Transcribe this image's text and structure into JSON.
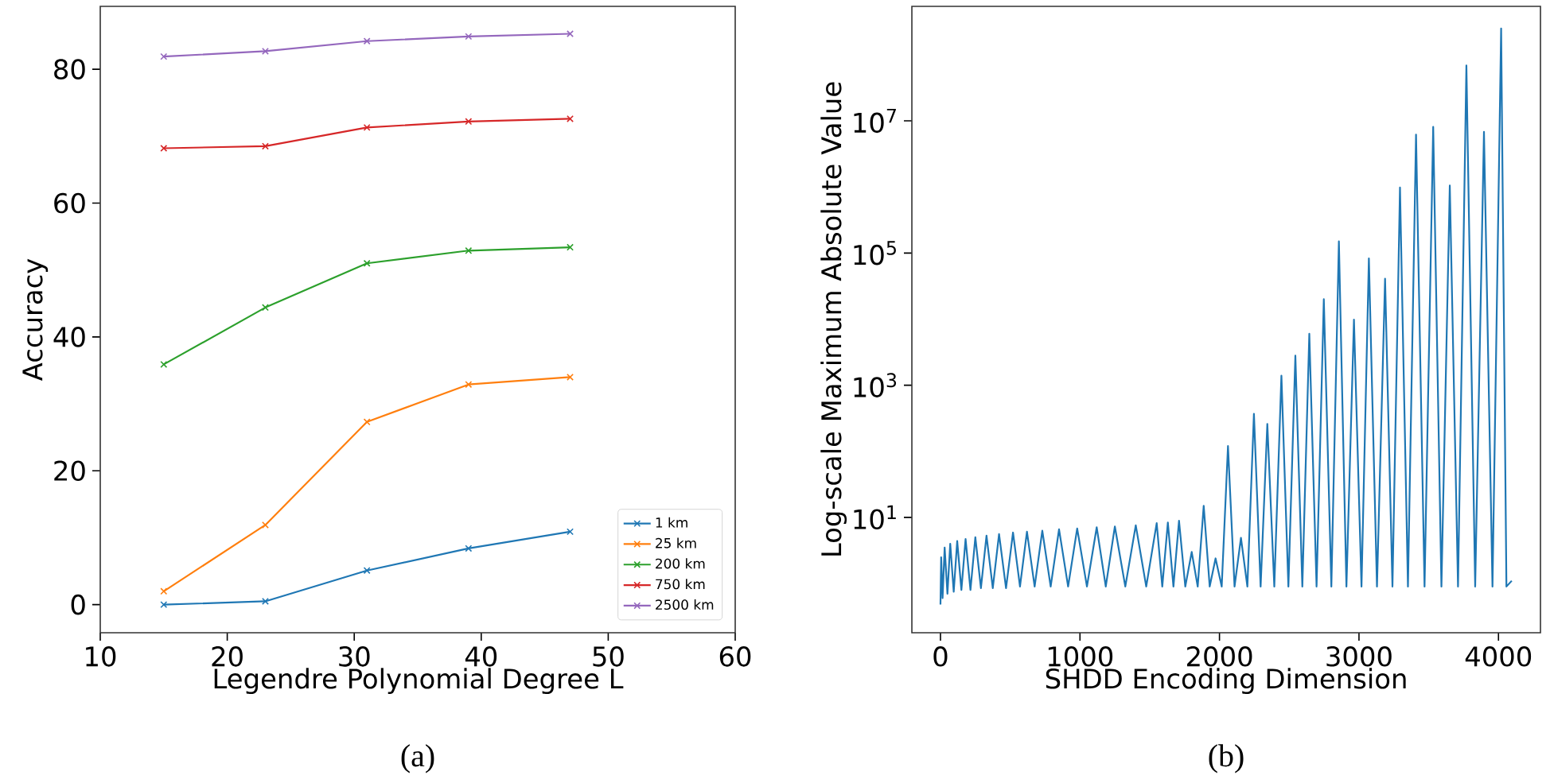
{
  "chart_data": [
    {
      "type": "line",
      "xlabel": "Legendre Polynomial Degree L",
      "ylabel": "Accuracy",
      "annotations": [
        "(a)"
      ],
      "x": [
        15,
        23,
        31,
        39,
        47
      ],
      "series": [
        {
          "name": "1 km",
          "color": "#1f77b4",
          "values": [
            0,
            0.5,
            5.1,
            8.4,
            10.9
          ]
        },
        {
          "name": "25 km",
          "color": "#ff7f0e",
          "values": [
            2.0,
            11.9,
            27.3,
            32.9,
            34.0
          ]
        },
        {
          "name": "200 km",
          "color": "#2ca02c",
          "values": [
            35.9,
            44.4,
            51.0,
            52.9,
            53.4
          ]
        },
        {
          "name": "750 km",
          "color": "#d62728",
          "values": [
            68.2,
            68.5,
            71.3,
            72.2,
            72.6
          ]
        },
        {
          "name": "2500 km",
          "color": "#9467bd",
          "values": [
            81.9,
            82.7,
            84.2,
            84.9,
            85.3
          ]
        }
      ],
      "xlim": [
        10,
        60
      ],
      "ylim": [
        -4.2,
        89.4
      ],
      "xticks": [
        10,
        20,
        30,
        40,
        50,
        60
      ],
      "yticks": [
        0,
        20,
        40,
        60,
        80
      ],
      "marker": "cross",
      "legend": "bottom right"
    },
    {
      "type": "line",
      "xlabel": "SHDD Encoding Dimension",
      "ylabel": "Log-scale Maximum Absolute Value",
      "annotations": [
        "(b)"
      ],
      "log": "y",
      "color": "#1f77b4",
      "x": [
        0,
        5,
        15,
        30,
        50,
        70,
        95,
        120,
        150,
        180,
        215,
        250,
        290,
        330,
        375,
        420,
        470,
        520,
        570,
        620,
        675,
        730,
        790,
        850,
        915,
        980,
        1050,
        1120,
        1185,
        1250,
        1325,
        1400,
        1475,
        1550,
        1590,
        1630,
        1670,
        1710,
        1755,
        1801,
        1844,
        1887,
        1930,
        1972,
        2016,
        2061,
        2108,
        2154,
        2200,
        2247,
        2295,
        2343,
        2393,
        2444,
        2494,
        2544,
        2594,
        2644,
        2696,
        2748,
        2802,
        2856,
        2910,
        2964,
        3018,
        3071,
        3129,
        3187,
        3240,
        3294,
        3351,
        3409,
        3470,
        3532,
        3591,
        3651,
        3710,
        3770,
        3833,
        3896,
        3957,
        4019,
        4057,
        4095
      ],
      "values": [
        0.48,
        2.5,
        0.6,
        3.5,
        0.7,
        4.0,
        0.75,
        4.4,
        0.8,
        4.7,
        0.8,
        5.0,
        0.85,
        5.3,
        0.85,
        5.6,
        0.85,
        5.9,
        0.9,
        6.1,
        0.9,
        6.3,
        0.9,
        6.6,
        0.9,
        6.8,
        0.9,
        7.1,
        0.9,
        7.3,
        0.9,
        7.6,
        0.9,
        8.2,
        0.9,
        8.4,
        0.9,
        8.9,
        0.9,
        3.0,
        0.9,
        15,
        0.9,
        2.4,
        0.9,
        120,
        0.9,
        4.9,
        0.9,
        370,
        0.9,
        260,
        0.9,
        1400,
        0.9,
        2800,
        0.9,
        6000,
        0.9,
        20000,
        0.9,
        150000,
        0.9,
        9800,
        0.9,
        83000,
        0.9,
        41000,
        0.9,
        980000,
        0.9,
        6200000,
        0.9,
        8100000,
        0.9,
        1050000,
        0.9,
        69000000,
        0.9,
        6800000,
        0.9,
        250000000,
        0.9,
        1.1
      ],
      "xlim": [
        -205,
        4301
      ],
      "ylim": [
        0.18,
        540000000
      ],
      "xticks": [
        0,
        1000,
        2000,
        3000,
        4000
      ],
      "yticks": [
        {
          "value": 10,
          "label": "10$^{1}$"
        },
        {
          "value": 1000,
          "label": "10$^{3}$"
        },
        {
          "value": 100000,
          "label": "10$^{5}$"
        },
        {
          "value": 10000000,
          "label": "10$^{7}$"
        }
      ]
    }
  ]
}
